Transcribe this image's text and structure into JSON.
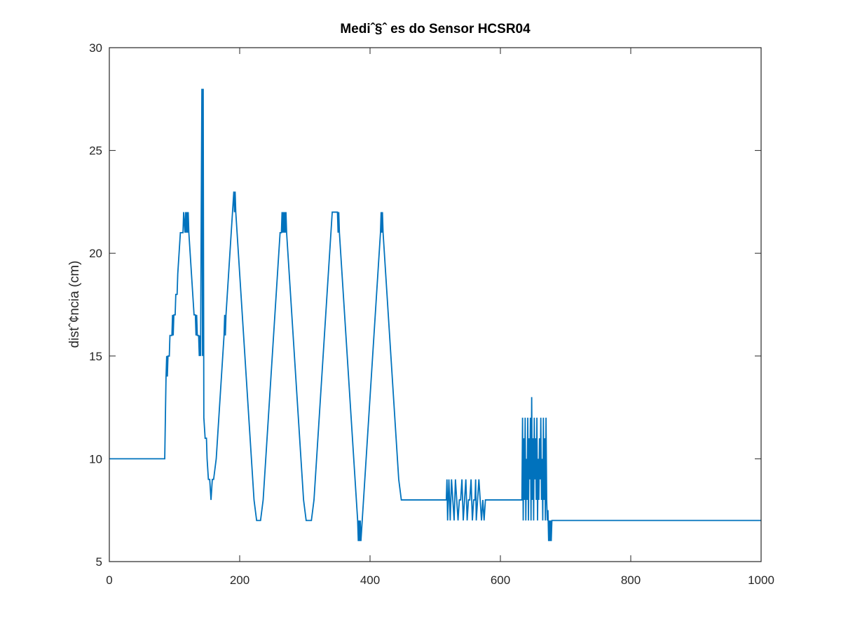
{
  "chart_data": {
    "type": "line",
    "title": "Mediˆ§ˆ es do Sensor HCSR04",
    "xlabel": "",
    "ylabel": "distˆ¢ncia (cm)",
    "xlim": [
      0,
      1000
    ],
    "ylim": [
      5,
      30
    ],
    "xticks": [
      0,
      200,
      400,
      600,
      800,
      1000
    ],
    "yticks": [
      5,
      10,
      15,
      20,
      25,
      30
    ],
    "grid": false,
    "box": true,
    "line_color": "#0072BD",
    "series": [
      {
        "points": [
          [
            0,
            10
          ],
          [
            85,
            10
          ],
          [
            86,
            12
          ],
          [
            87,
            14
          ],
          [
            88,
            15
          ],
          [
            89,
            14
          ],
          [
            90,
            15
          ],
          [
            92,
            15
          ],
          [
            93,
            16
          ],
          [
            96,
            16
          ],
          [
            97,
            17
          ],
          [
            98,
            16
          ],
          [
            99,
            17
          ],
          [
            101,
            17
          ],
          [
            102,
            18
          ],
          [
            104,
            18
          ],
          [
            105,
            19
          ],
          [
            107,
            20
          ],
          [
            109,
            21
          ],
          [
            113,
            21
          ],
          [
            114,
            22
          ],
          [
            116,
            21
          ],
          [
            117,
            22
          ],
          [
            118,
            21
          ],
          [
            119,
            22
          ],
          [
            120,
            21
          ],
          [
            121,
            22
          ],
          [
            122,
            21
          ],
          [
            124,
            20
          ],
          [
            126,
            19
          ],
          [
            128,
            18
          ],
          [
            130,
            17
          ],
          [
            132,
            17
          ],
          [
            133,
            16
          ],
          [
            134,
            17
          ],
          [
            135,
            16
          ],
          [
            137,
            16
          ],
          [
            138,
            15
          ],
          [
            139,
            16
          ],
          [
            140,
            15
          ],
          [
            141,
            22
          ],
          [
            142,
            28
          ],
          [
            143,
            15
          ],
          [
            144,
            28
          ],
          [
            145,
            12
          ],
          [
            147,
            11
          ],
          [
            149,
            11
          ],
          [
            150,
            10
          ],
          [
            152,
            9
          ],
          [
            154,
            9
          ],
          [
            155,
            8.5
          ],
          [
            156,
            8
          ],
          [
            157,
            8.5
          ],
          [
            158,
            9
          ],
          [
            160,
            9
          ],
          [
            162,
            9.5
          ],
          [
            164,
            10
          ],
          [
            166,
            11
          ],
          [
            168,
            12
          ],
          [
            170,
            13
          ],
          [
            172,
            14
          ],
          [
            174,
            15
          ],
          [
            176,
            16
          ],
          [
            177,
            17
          ],
          [
            178,
            16
          ],
          [
            179,
            17
          ],
          [
            181,
            18
          ],
          [
            183,
            19
          ],
          [
            185,
            20
          ],
          [
            187,
            21
          ],
          [
            189,
            22
          ],
          [
            191,
            23
          ],
          [
            192,
            22
          ],
          [
            193,
            23
          ],
          [
            194,
            22
          ],
          [
            196,
            21
          ],
          [
            198,
            20
          ],
          [
            200,
            19
          ],
          [
            202,
            18
          ],
          [
            204,
            17
          ],
          [
            206,
            16
          ],
          [
            208,
            15
          ],
          [
            210,
            14
          ],
          [
            212,
            13
          ],
          [
            214,
            12
          ],
          [
            216,
            11
          ],
          [
            218,
            10
          ],
          [
            220,
            9
          ],
          [
            222,
            8
          ],
          [
            224,
            7.5
          ],
          [
            226,
            7
          ],
          [
            232,
            7
          ],
          [
            234,
            7.5
          ],
          [
            236,
            8
          ],
          [
            238,
            9
          ],
          [
            240,
            10
          ],
          [
            242,
            11
          ],
          [
            244,
            12
          ],
          [
            246,
            13
          ],
          [
            248,
            14
          ],
          [
            250,
            15
          ],
          [
            252,
            16
          ],
          [
            254,
            17
          ],
          [
            256,
            18
          ],
          [
            258,
            19
          ],
          [
            260,
            20
          ],
          [
            262,
            21
          ],
          [
            264,
            21
          ],
          [
            265,
            22
          ],
          [
            266,
            21
          ],
          [
            267,
            22
          ],
          [
            268,
            21
          ],
          [
            269,
            22
          ],
          [
            270,
            21
          ],
          [
            271,
            22
          ],
          [
            272,
            21
          ],
          [
            274,
            20
          ],
          [
            276,
            19
          ],
          [
            278,
            18
          ],
          [
            280,
            17
          ],
          [
            282,
            16
          ],
          [
            284,
            15
          ],
          [
            286,
            14
          ],
          [
            288,
            13
          ],
          [
            290,
            12
          ],
          [
            292,
            11
          ],
          [
            294,
            10
          ],
          [
            296,
            9
          ],
          [
            298,
            8
          ],
          [
            300,
            7.5
          ],
          [
            302,
            7
          ],
          [
            310,
            7
          ],
          [
            312,
            7.5
          ],
          [
            314,
            8
          ],
          [
            316,
            9
          ],
          [
            318,
            10
          ],
          [
            320,
            11
          ],
          [
            322,
            12
          ],
          [
            324,
            13
          ],
          [
            326,
            14
          ],
          [
            328,
            15
          ],
          [
            330,
            16
          ],
          [
            332,
            17
          ],
          [
            334,
            18
          ],
          [
            336,
            19
          ],
          [
            338,
            20
          ],
          [
            340,
            21
          ],
          [
            342,
            22
          ],
          [
            350,
            22
          ],
          [
            351,
            21
          ],
          [
            352,
            22
          ],
          [
            353,
            21
          ],
          [
            355,
            20
          ],
          [
            357,
            19
          ],
          [
            359,
            18
          ],
          [
            361,
            17
          ],
          [
            363,
            16
          ],
          [
            365,
            15
          ],
          [
            367,
            14
          ],
          [
            369,
            13
          ],
          [
            371,
            12
          ],
          [
            373,
            11
          ],
          [
            375,
            10
          ],
          [
            377,
            9
          ],
          [
            379,
            8
          ],
          [
            381,
            7
          ],
          [
            382,
            6
          ],
          [
            383,
            7
          ],
          [
            384,
            6
          ],
          [
            385,
            7
          ],
          [
            386,
            6
          ],
          [
            388,
            7
          ],
          [
            390,
            8
          ],
          [
            392,
            9
          ],
          [
            394,
            10
          ],
          [
            396,
            11
          ],
          [
            398,
            12
          ],
          [
            400,
            13
          ],
          [
            402,
            14
          ],
          [
            404,
            15
          ],
          [
            406,
            16
          ],
          [
            408,
            17
          ],
          [
            410,
            18
          ],
          [
            412,
            19
          ],
          [
            414,
            20
          ],
          [
            416,
            21
          ],
          [
            417,
            22
          ],
          [
            418,
            21
          ],
          [
            419,
            22
          ],
          [
            420,
            21
          ],
          [
            422,
            20
          ],
          [
            424,
            19
          ],
          [
            426,
            18
          ],
          [
            428,
            17
          ],
          [
            430,
            16
          ],
          [
            432,
            15
          ],
          [
            434,
            14
          ],
          [
            436,
            13
          ],
          [
            438,
            12
          ],
          [
            440,
            11
          ],
          [
            442,
            10
          ],
          [
            444,
            9
          ],
          [
            446,
            8.5
          ],
          [
            448,
            8
          ],
          [
            517,
            8
          ],
          [
            518,
            9
          ],
          [
            519,
            7
          ],
          [
            520,
            8
          ],
          [
            521,
            9
          ],
          [
            523,
            7
          ],
          [
            525,
            9
          ],
          [
            527,
            8
          ],
          [
            529,
            7
          ],
          [
            531,
            9
          ],
          [
            533,
            8
          ],
          [
            535,
            7
          ],
          [
            537,
            8
          ],
          [
            539,
            8
          ],
          [
            541,
            9
          ],
          [
            543,
            7
          ],
          [
            545,
            8
          ],
          [
            547,
            9
          ],
          [
            549,
            7
          ],
          [
            551,
            8
          ],
          [
            553,
            8
          ],
          [
            555,
            9
          ],
          [
            557,
            7
          ],
          [
            559,
            8
          ],
          [
            561,
            8
          ],
          [
            562,
            9
          ],
          [
            563,
            7
          ],
          [
            565,
            8
          ],
          [
            567,
            9
          ],
          [
            569,
            8
          ],
          [
            571,
            7
          ],
          [
            573,
            8
          ],
          [
            575,
            7
          ],
          [
            577,
            8
          ],
          [
            633,
            8
          ],
          [
            634,
            12
          ],
          [
            635,
            7
          ],
          [
            636,
            11
          ],
          [
            637,
            8
          ],
          [
            638,
            12
          ],
          [
            639,
            7
          ],
          [
            640,
            10
          ],
          [
            641,
            8
          ],
          [
            642,
            12
          ],
          [
            643,
            7
          ],
          [
            644,
            11
          ],
          [
            645,
            9
          ],
          [
            646,
            12
          ],
          [
            647,
            7
          ],
          [
            648,
            13
          ],
          [
            649,
            8
          ],
          [
            650,
            11
          ],
          [
            651,
            7
          ],
          [
            652,
            12
          ],
          [
            653,
            9
          ],
          [
            654,
            11
          ],
          [
            655,
            8
          ],
          [
            656,
            12
          ],
          [
            657,
            7
          ],
          [
            658,
            10
          ],
          [
            659,
            8
          ],
          [
            660,
            11
          ],
          [
            661,
            9
          ],
          [
            662,
            12
          ],
          [
            663,
            8
          ],
          [
            664,
            10
          ],
          [
            665,
            7
          ],
          [
            666,
            12
          ],
          [
            667,
            8
          ],
          [
            668,
            11
          ],
          [
            669,
            7
          ],
          [
            670,
            12
          ],
          [
            671,
            8
          ],
          [
            672,
            7
          ],
          [
            673,
            7.5
          ],
          [
            674,
            6
          ],
          [
            675,
            7
          ],
          [
            676,
            6
          ],
          [
            677,
            7
          ],
          [
            678,
            6
          ],
          [
            679,
            7
          ],
          [
            1000,
            7
          ]
        ]
      }
    ]
  }
}
